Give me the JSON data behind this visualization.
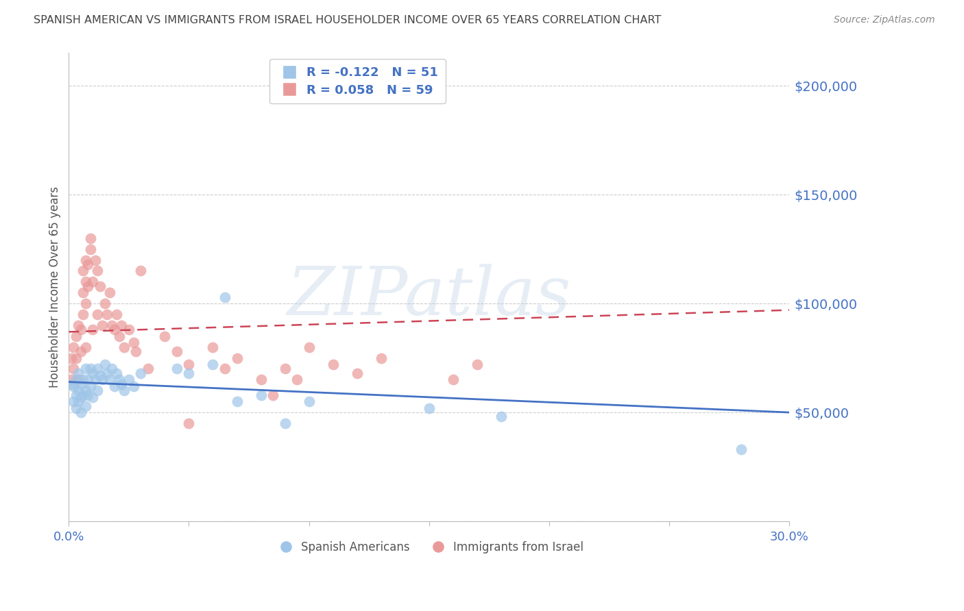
{
  "title": "SPANISH AMERICAN VS IMMIGRANTS FROM ISRAEL HOUSEHOLDER INCOME OVER 65 YEARS CORRELATION CHART",
  "source": "Source: ZipAtlas.com",
  "ylabel": "Householder Income Over 65 years",
  "right_yticklabels": [
    "$200,000",
    "$150,000",
    "$100,000",
    "$50,000",
    ""
  ],
  "right_yticks": [
    200000,
    150000,
    100000,
    50000,
    0
  ],
  "xmin": 0.0,
  "xmax": 0.3,
  "ymin": 0,
  "ymax": 215000,
  "watermark_text": "ZIPatlas",
  "legend_blue_r": "R = -0.122",
  "legend_blue_n": "N = 51",
  "legend_pink_r": "R = 0.058",
  "legend_pink_n": "N = 59",
  "blue_color": "#9fc5e8",
  "pink_color": "#ea9999",
  "blue_line_color": "#4472c4",
  "pink_line_color": "#cc4455",
  "title_color": "#444444",
  "axis_label_color": "#4472c4",
  "blue_scatter_x": [
    0.001,
    0.002,
    0.002,
    0.003,
    0.003,
    0.003,
    0.004,
    0.004,
    0.004,
    0.005,
    0.005,
    0.005,
    0.006,
    0.006,
    0.007,
    0.007,
    0.007,
    0.008,
    0.008,
    0.009,
    0.009,
    0.01,
    0.01,
    0.011,
    0.012,
    0.012,
    0.013,
    0.014,
    0.015,
    0.016,
    0.017,
    0.018,
    0.019,
    0.02,
    0.021,
    0.022,
    0.023,
    0.025,
    0.027,
    0.03,
    0.045,
    0.05,
    0.06,
    0.065,
    0.07,
    0.08,
    0.09,
    0.1,
    0.15,
    0.18,
    0.28
  ],
  "blue_scatter_y": [
    63000,
    55000,
    62000,
    58000,
    65000,
    52000,
    60000,
    55000,
    68000,
    63000,
    57000,
    50000,
    65000,
    58000,
    70000,
    60000,
    53000,
    65000,
    58000,
    70000,
    62000,
    68000,
    57000,
    65000,
    70000,
    60000,
    67000,
    65000,
    72000,
    68000,
    65000,
    70000,
    62000,
    68000,
    65000,
    63000,
    60000,
    65000,
    62000,
    68000,
    70000,
    68000,
    72000,
    103000,
    55000,
    58000,
    45000,
    55000,
    52000,
    48000,
    33000
  ],
  "pink_scatter_x": [
    0.001,
    0.001,
    0.002,
    0.002,
    0.003,
    0.003,
    0.004,
    0.004,
    0.005,
    0.005,
    0.006,
    0.006,
    0.006,
    0.007,
    0.007,
    0.007,
    0.007,
    0.008,
    0.008,
    0.009,
    0.009,
    0.01,
    0.01,
    0.011,
    0.012,
    0.012,
    0.013,
    0.014,
    0.015,
    0.016,
    0.017,
    0.018,
    0.019,
    0.02,
    0.021,
    0.022,
    0.023,
    0.025,
    0.027,
    0.028,
    0.03,
    0.033,
    0.04,
    0.045,
    0.05,
    0.05,
    0.06,
    0.065,
    0.07,
    0.08,
    0.085,
    0.09,
    0.095,
    0.1,
    0.11,
    0.12,
    0.13,
    0.16,
    0.17
  ],
  "pink_scatter_y": [
    75000,
    65000,
    80000,
    70000,
    85000,
    75000,
    90000,
    65000,
    88000,
    78000,
    95000,
    105000,
    115000,
    100000,
    110000,
    120000,
    80000,
    118000,
    108000,
    125000,
    130000,
    110000,
    88000,
    120000,
    115000,
    95000,
    108000,
    90000,
    100000,
    95000,
    105000,
    90000,
    88000,
    95000,
    85000,
    90000,
    80000,
    88000,
    82000,
    78000,
    115000,
    70000,
    85000,
    78000,
    72000,
    45000,
    80000,
    70000,
    75000,
    65000,
    58000,
    70000,
    65000,
    80000,
    72000,
    68000,
    75000,
    65000,
    72000
  ],
  "grid_yticks": [
    0,
    50000,
    100000,
    150000,
    200000
  ],
  "xtick_positions": [
    0.0,
    0.05,
    0.1,
    0.15,
    0.2,
    0.25,
    0.3
  ]
}
